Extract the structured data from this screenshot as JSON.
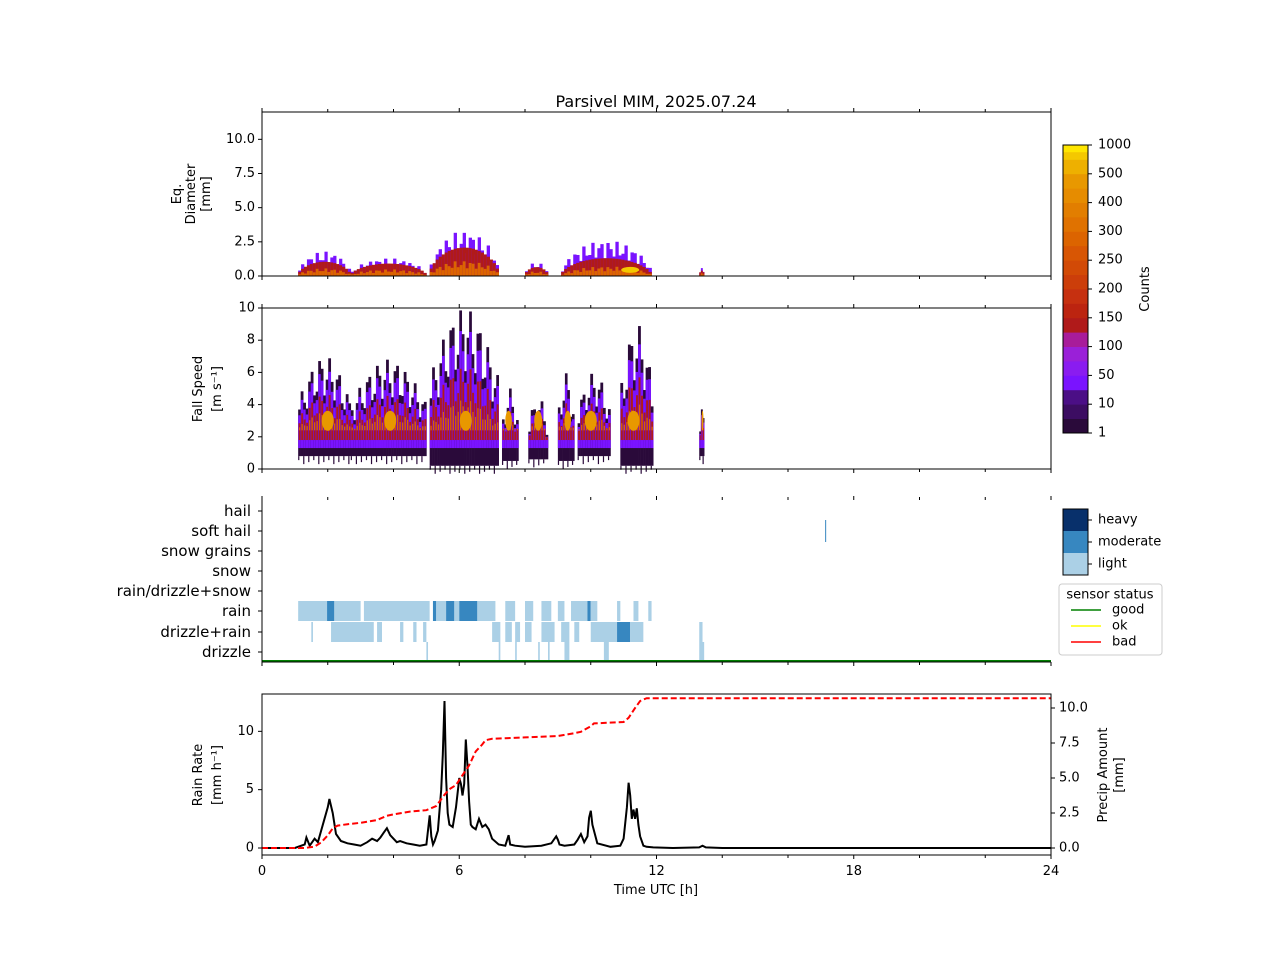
{
  "chart_data": [
    {
      "type": "heatmap",
      "name": "diameter-panel",
      "title": "Parsivel MIM, 2025.07.24",
      "ylabel": [
        "Eq.",
        "Diameter",
        "[mm]"
      ],
      "xlim": [
        0,
        24
      ],
      "ylim": [
        0,
        12
      ],
      "yticks": [
        0,
        2.5,
        5,
        7.5,
        10
      ],
      "ytick_labels": [
        "0.0",
        "2.5",
        "5.0",
        "7.5",
        "10.0"
      ],
      "value_label": "Counts",
      "colorbar_ticks": [
        "1",
        "10",
        "50",
        "100",
        "150",
        "200",
        "250",
        "300",
        "400",
        "500",
        "1000"
      ],
      "segments": [
        {
          "start": 1.1,
          "end": 2.7,
          "top": 1.8,
          "core": 0.8
        },
        {
          "start": 2.7,
          "end": 5.0,
          "top": 1.3,
          "core": 0.7
        },
        {
          "start": 5.1,
          "end": 7.2,
          "top": 3.3,
          "core": 1.6
        },
        {
          "start": 8.0,
          "end": 8.7,
          "top": 1.0,
          "core": 0.5
        },
        {
          "start": 9.1,
          "end": 11.85,
          "top": 2.6,
          "core": 1.0
        },
        {
          "start": 13.3,
          "end": 13.45,
          "top": 0.6,
          "core": 0.3
        }
      ]
    },
    {
      "type": "heatmap",
      "name": "fallspeed-panel",
      "ylabel": [
        "Fall Speed",
        "[m s⁻¹]"
      ],
      "xlim": [
        0,
        24
      ],
      "ylim": [
        0,
        10
      ],
      "yticks": [
        0,
        2,
        4,
        6,
        8,
        10
      ],
      "ytick_labels": [
        "0",
        "2",
        "4",
        "6",
        "8",
        "10"
      ],
      "segments": [
        {
          "start": 1.1,
          "end": 2.7,
          "top": 7.0,
          "bottom": 0.8,
          "peak": 2.0
        },
        {
          "start": 2.7,
          "end": 5.0,
          "top": 6.8,
          "bottom": 0.8,
          "peak": 3.9
        },
        {
          "start": 5.1,
          "end": 7.2,
          "top": 10.0,
          "bottom": 0.2,
          "peak": 6.2
        },
        {
          "start": 7.3,
          "end": 7.8,
          "top": 5.0,
          "bottom": 0.5,
          "peak": 7.5
        },
        {
          "start": 8.1,
          "end": 8.7,
          "top": 4.5,
          "bottom": 0.6,
          "peak": 8.4
        },
        {
          "start": 9.0,
          "end": 9.5,
          "top": 6.0,
          "bottom": 0.5,
          "peak": 9.3
        },
        {
          "start": 9.6,
          "end": 10.6,
          "top": 6.0,
          "bottom": 0.8,
          "peak": 10.0
        },
        {
          "start": 10.9,
          "end": 11.9,
          "top": 9.0,
          "bottom": 0.2,
          "peak": 11.3
        },
        {
          "start": 13.3,
          "end": 13.45,
          "top": 4.0,
          "bottom": 0.8,
          "peak": 13.4
        }
      ]
    },
    {
      "type": "heatmap",
      "name": "precip-type-panel",
      "categories": [
        "drizzle",
        "drizzle+rain",
        "rain",
        "rain/drizzle+snow",
        "snow",
        "snow grains",
        "soft hail",
        "hail"
      ],
      "intensity_levels": [
        "light",
        "moderate",
        "heavy"
      ],
      "intensity_colors": [
        "#abd0e6",
        "#3787c0",
        "#08306b"
      ],
      "xlim": [
        0,
        24
      ],
      "occurrences": [
        {
          "category": "rain",
          "start": 1.1,
          "end": 2.0,
          "level": "light"
        },
        {
          "category": "rain",
          "start": 1.98,
          "end": 2.2,
          "level": "moderate"
        },
        {
          "category": "rain",
          "start": 2.2,
          "end": 3.0,
          "level": "light"
        },
        {
          "category": "rain",
          "start": 3.1,
          "end": 5.1,
          "level": "light"
        },
        {
          "category": "rain",
          "start": 5.2,
          "end": 5.3,
          "level": "moderate"
        },
        {
          "category": "rain",
          "start": 5.3,
          "end": 5.6,
          "level": "light"
        },
        {
          "category": "rain",
          "start": 5.6,
          "end": 5.85,
          "level": "moderate"
        },
        {
          "category": "rain",
          "start": 5.85,
          "end": 6.0,
          "level": "light"
        },
        {
          "category": "rain",
          "start": 6.0,
          "end": 6.55,
          "level": "moderate"
        },
        {
          "category": "rain",
          "start": 6.55,
          "end": 7.1,
          "level": "light"
        },
        {
          "category": "rain",
          "start": 7.4,
          "end": 7.7,
          "level": "light"
        },
        {
          "category": "rain",
          "start": 8.0,
          "end": 8.25,
          "level": "light"
        },
        {
          "category": "rain",
          "start": 8.5,
          "end": 8.8,
          "level": "light"
        },
        {
          "category": "rain",
          "start": 9.0,
          "end": 9.2,
          "level": "light"
        },
        {
          "category": "rain",
          "start": 9.4,
          "end": 9.9,
          "level": "light"
        },
        {
          "category": "rain",
          "start": 9.9,
          "end": 10.0,
          "level": "moderate"
        },
        {
          "category": "rain",
          "start": 10.0,
          "end": 10.2,
          "level": "light"
        },
        {
          "category": "rain",
          "start": 10.8,
          "end": 10.9,
          "level": "light"
        },
        {
          "category": "rain",
          "start": 11.3,
          "end": 11.45,
          "level": "light"
        },
        {
          "category": "rain",
          "start": 11.75,
          "end": 11.85,
          "level": "light"
        },
        {
          "category": "drizzle+rain",
          "start": 1.5,
          "end": 1.55,
          "level": "light"
        },
        {
          "category": "drizzle+rain",
          "start": 2.1,
          "end": 3.4,
          "level": "light"
        },
        {
          "category": "drizzle+rain",
          "start": 3.5,
          "end": 3.65,
          "level": "light"
        },
        {
          "category": "drizzle+rain",
          "start": 4.2,
          "end": 4.3,
          "level": "light"
        },
        {
          "category": "drizzle+rain",
          "start": 4.6,
          "end": 4.7,
          "level": "light"
        },
        {
          "category": "drizzle+rain",
          "start": 4.9,
          "end": 5.0,
          "level": "light"
        },
        {
          "category": "drizzle+rain",
          "start": 7.0,
          "end": 7.25,
          "level": "light"
        },
        {
          "category": "drizzle+rain",
          "start": 7.4,
          "end": 7.6,
          "level": "light"
        },
        {
          "category": "drizzle+rain",
          "start": 7.7,
          "end": 7.85,
          "level": "light"
        },
        {
          "category": "drizzle+rain",
          "start": 8.0,
          "end": 8.2,
          "level": "light"
        },
        {
          "category": "drizzle+rain",
          "start": 8.5,
          "end": 8.9,
          "level": "light"
        },
        {
          "category": "drizzle+rain",
          "start": 9.1,
          "end": 9.35,
          "level": "light"
        },
        {
          "category": "drizzle+rain",
          "start": 9.5,
          "end": 9.65,
          "level": "light"
        },
        {
          "category": "drizzle+rain",
          "start": 10.0,
          "end": 10.8,
          "level": "light"
        },
        {
          "category": "drizzle+rain",
          "start": 10.8,
          "end": 11.2,
          "level": "moderate"
        },
        {
          "category": "drizzle+rain",
          "start": 11.2,
          "end": 11.6,
          "level": "light"
        },
        {
          "category": "drizzle+rain",
          "start": 13.3,
          "end": 13.4,
          "level": "light"
        },
        {
          "category": "drizzle",
          "start": 5.0,
          "end": 5.05,
          "level": "light"
        },
        {
          "category": "drizzle",
          "start": 7.2,
          "end": 7.25,
          "level": "light"
        },
        {
          "category": "drizzle",
          "start": 7.7,
          "end": 7.75,
          "level": "light"
        },
        {
          "category": "drizzle",
          "start": 8.4,
          "end": 8.45,
          "level": "light"
        },
        {
          "category": "drizzle",
          "start": 8.7,
          "end": 8.75,
          "level": "light"
        },
        {
          "category": "drizzle",
          "start": 9.2,
          "end": 9.35,
          "level": "light"
        },
        {
          "category": "drizzle",
          "start": 10.4,
          "end": 10.55,
          "level": "light"
        },
        {
          "category": "drizzle",
          "start": 13.3,
          "end": 13.45,
          "level": "light"
        },
        {
          "category": "soft hail",
          "start": 17.13,
          "end": 17.16,
          "level": "moderate"
        }
      ],
      "legend": {
        "title": "sensor status",
        "entries": [
          {
            "label": "good",
            "color": "#008000"
          },
          {
            "label": "ok",
            "color": "#ffff00"
          },
          {
            "label": "bad",
            "color": "#ff0000"
          }
        ]
      },
      "intensity_legend": [
        "heavy",
        "moderate",
        "light"
      ]
    },
    {
      "type": "line",
      "name": "rainrate-panel",
      "xlabel": "Time UTC [h]",
      "ylabel": [
        "Rain Rate",
        "[mm h⁻¹]"
      ],
      "ylabel_right": [
        "Precip Amount",
        "[mm]"
      ],
      "xlim": [
        0,
        24
      ],
      "ylim": [
        -0.6,
        13.2
      ],
      "ylim_right": [
        -0.5,
        11.0
      ],
      "xticks": [
        "0",
        "6",
        "12",
        "18",
        "24"
      ],
      "yticks": [
        "0",
        "5",
        "10"
      ],
      "yticks_right": [
        "0.0",
        "2.5",
        "5.0",
        "7.5",
        "10.0"
      ],
      "series": [
        {
          "name": "Rain Rate",
          "axis": "left",
          "color": "#000000",
          "style": "solid",
          "x": [
            0,
            1.0,
            1.3,
            1.35,
            1.45,
            1.6,
            1.7,
            1.8,
            1.9,
            2.0,
            2.05,
            2.15,
            2.25,
            2.4,
            2.6,
            2.8,
            3.0,
            3.2,
            3.35,
            3.5,
            3.6,
            3.7,
            3.8,
            3.9,
            4.0,
            4.1,
            4.2,
            4.4,
            4.6,
            4.8,
            5.0,
            5.1,
            5.15,
            5.2,
            5.25,
            5.35,
            5.45,
            5.5,
            5.55,
            5.6,
            5.65,
            5.7,
            5.8,
            5.9,
            6.0,
            6.05,
            6.1,
            6.15,
            6.2,
            6.25,
            6.3,
            6.35,
            6.4,
            6.5,
            6.6,
            6.7,
            6.8,
            6.9,
            7.0,
            7.2,
            7.4,
            7.5,
            7.55,
            7.7,
            8.0,
            8.5,
            8.8,
            8.95,
            9.0,
            9.05,
            9.2,
            9.5,
            9.6,
            9.7,
            9.8,
            9.9,
            9.95,
            10.0,
            10.05,
            10.2,
            10.6,
            10.9,
            11.0,
            11.1,
            11.15,
            11.2,
            11.25,
            11.3,
            11.35,
            11.4,
            11.45,
            11.5,
            11.6,
            11.7,
            11.9,
            12.5,
            13.3,
            13.4,
            13.5,
            14.0,
            17.0,
            24.0
          ],
          "y": [
            0,
            0,
            0.3,
            0.9,
            0.2,
            0.8,
            0.5,
            1.5,
            2.5,
            3.5,
            4.2,
            3.0,
            1.2,
            0.6,
            0.4,
            0.3,
            0.2,
            0.5,
            0.8,
            0.6,
            0.9,
            1.3,
            1.7,
            1.1,
            0.8,
            0.5,
            0.6,
            0.4,
            0.3,
            0.2,
            0.3,
            2.8,
            1.0,
            0.3,
            0.6,
            1.5,
            5.0,
            8.0,
            12.6,
            6.0,
            3.0,
            2.0,
            1.8,
            3.5,
            6.0,
            5.5,
            4.5,
            5.5,
            9.3,
            7.0,
            4.0,
            2.0,
            1.8,
            1.6,
            2.5,
            1.8,
            2.0,
            1.6,
            0.8,
            0.3,
            0.2,
            1.1,
            0.3,
            0.2,
            0.1,
            0.2,
            0.4,
            1.0,
            0.7,
            0.3,
            0.2,
            0.3,
            0.7,
            1.2,
            0.5,
            1.0,
            2.6,
            3.2,
            2.0,
            0.4,
            0.1,
            0.2,
            0.8,
            3.5,
            5.6,
            4.5,
            2.5,
            3.3,
            2.5,
            3.4,
            2.0,
            1.0,
            0.2,
            0.1,
            0.05,
            0,
            0.05,
            0.2,
            0.05,
            0,
            0,
            0
          ]
        },
        {
          "name": "Precip Amount",
          "axis": "right",
          "color": "#ff0000",
          "style": "dashed",
          "x": [
            0,
            1.3,
            1.6,
            1.8,
            2.0,
            2.15,
            2.3,
            2.6,
            3.0,
            3.5,
            3.8,
            4.0,
            4.5,
            5.0,
            5.3,
            5.55,
            5.7,
            5.9,
            6.1,
            6.3,
            6.5,
            6.7,
            6.8,
            7.0,
            8.0,
            9.0,
            9.5,
            9.7,
            10.0,
            10.1,
            11.0,
            11.15,
            11.35,
            11.5,
            11.7,
            12.0,
            24.0
          ],
          "y": [
            0,
            0,
            0.1,
            0.4,
            0.9,
            1.4,
            1.6,
            1.7,
            1.8,
            2.0,
            2.3,
            2.4,
            2.6,
            2.7,
            3.0,
            3.8,
            4.2,
            4.5,
            5.2,
            5.9,
            6.9,
            7.4,
            7.7,
            7.8,
            7.9,
            8.0,
            8.2,
            8.3,
            8.7,
            8.9,
            9.0,
            9.3,
            10.0,
            10.5,
            10.7,
            10.7,
            10.7
          ]
        }
      ]
    }
  ]
}
